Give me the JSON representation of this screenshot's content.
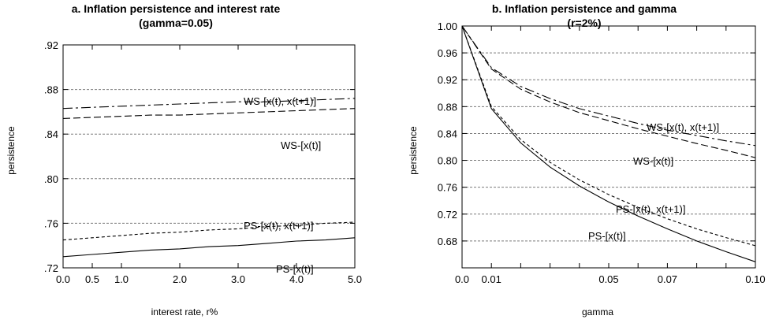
{
  "chart_data": [
    {
      "type": "line",
      "title": "a. Inflation persistence and interest rate",
      "subtitle": "(gamma=0.05)",
      "xlabel": "interest rate, r%",
      "ylabel": "persistence",
      "xlim": [
        0,
        5
      ],
      "ylim": [
        0.72,
        0.92
      ],
      "x_ticks": [
        0,
        0.5,
        1,
        2,
        3,
        4,
        5
      ],
      "x_tick_labels": [
        "0.0",
        "0.5",
        "1.0",
        "2.0",
        "3.0",
        "4.0",
        "5.0"
      ],
      "y_ticks": [
        0.72,
        0.76,
        0.8,
        0.84,
        0.88,
        0.92
      ],
      "y_tick_labels": [
        ".72",
        ".76",
        ".80",
        ".84",
        ".88",
        ".92"
      ],
      "grid": "horizontal dashed",
      "x": [
        0,
        0.5,
        1,
        1.5,
        2,
        2.5,
        3,
        3.5,
        4,
        4.5,
        5
      ],
      "series": [
        {
          "name": "WS-[x(t), x(t+1)]",
          "style": "dashdot",
          "color": "#000000",
          "values": [
            0.863,
            0.864,
            0.865,
            0.866,
            0.867,
            0.868,
            0.869,
            0.869,
            0.87,
            0.871,
            0.872
          ]
        },
        {
          "name": "WS-[x(t)]",
          "style": "longdash",
          "color": "#000000",
          "values": [
            0.854,
            0.855,
            0.856,
            0.857,
            0.857,
            0.858,
            0.859,
            0.86,
            0.861,
            0.862,
            0.863
          ]
        },
        {
          "name": "PS-[x(t), x(t+1)]",
          "style": "shortdash",
          "color": "#000000",
          "values": [
            0.745,
            0.747,
            0.749,
            0.751,
            0.752,
            0.754,
            0.755,
            0.757,
            0.758,
            0.76,
            0.761
          ]
        },
        {
          "name": "PS-[x(t)]",
          "style": "solid",
          "color": "#000000",
          "values": [
            0.73,
            0.732,
            0.734,
            0.736,
            0.737,
            0.739,
            0.74,
            0.742,
            0.744,
            0.745,
            0.747
          ]
        }
      ]
    },
    {
      "type": "line",
      "title": "b. Inflation persistence and gamma",
      "subtitle": "(r=2%)",
      "xlabel": "gamma",
      "ylabel": "persistence",
      "xlim": [
        0,
        0.1
      ],
      "ylim": [
        0.64,
        1.0
      ],
      "x_ticks": [
        0,
        0.01,
        0.02,
        0.03,
        0.04,
        0.05,
        0.06,
        0.07,
        0.08,
        0.09,
        0.1
      ],
      "x_tick_labels": [
        "0.0",
        "0.01",
        "",
        "",
        "",
        "0.05",
        "",
        "0.07",
        "",
        "",
        "0.10"
      ],
      "y_ticks": [
        0.68,
        0.72,
        0.76,
        0.8,
        0.84,
        0.88,
        0.92,
        0.96,
        1.0
      ],
      "y_tick_labels": [
        "0.68",
        "0.72",
        "0.76",
        "0.80",
        "0.84",
        "0.88",
        "0.92",
        "0.96",
        "1.00"
      ],
      "grid": "horizontal dashed",
      "x": [
        0,
        0.01,
        0.02,
        0.03,
        0.04,
        0.05,
        0.06,
        0.07,
        0.08,
        0.09,
        0.1
      ],
      "series": [
        {
          "name": "WS-[x(t), x(t+1)]",
          "style": "dashdot",
          "color": "#000000",
          "values": [
            1.0,
            0.938,
            0.91,
            0.892,
            0.877,
            0.866,
            0.855,
            0.845,
            0.837,
            0.829,
            0.822
          ]
        },
        {
          "name": "WS-[x(t)]",
          "style": "longdash",
          "color": "#000000",
          "values": [
            1.0,
            0.936,
            0.906,
            0.887,
            0.871,
            0.859,
            0.847,
            0.836,
            0.825,
            0.815,
            0.804
          ]
        },
        {
          "name": "PS-[x(t), x(t+1)]",
          "style": "shortdash",
          "color": "#000000",
          "values": [
            1.0,
            0.88,
            0.831,
            0.797,
            0.771,
            0.749,
            0.73,
            0.713,
            0.698,
            0.685,
            0.673
          ]
        },
        {
          "name": "PS-[x(t)]",
          "style": "solid",
          "color": "#000000",
          "values": [
            1.0,
            0.877,
            0.826,
            0.79,
            0.762,
            0.738,
            0.717,
            0.698,
            0.68,
            0.664,
            0.649
          ]
        }
      ]
    }
  ]
}
